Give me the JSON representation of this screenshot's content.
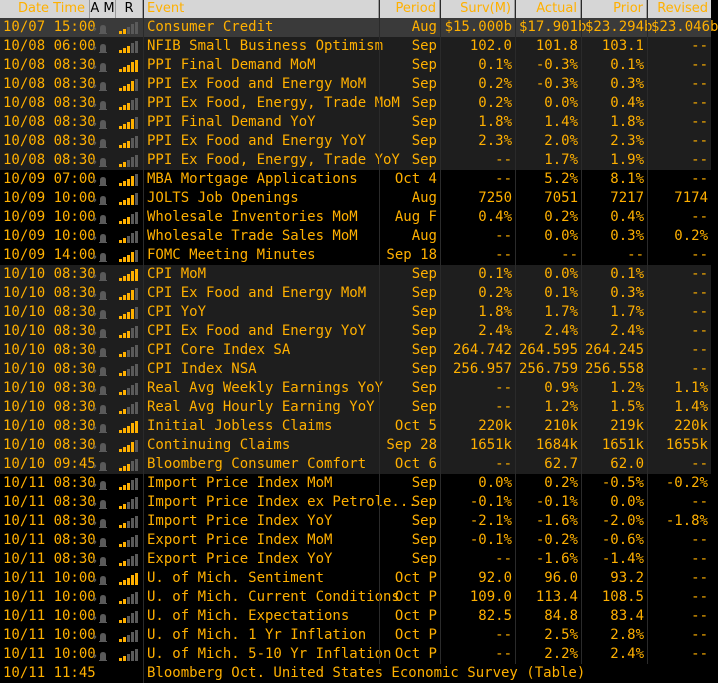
{
  "headers": {
    "time": "Date Time",
    "am": "A M",
    "r": "R",
    "event": "Event",
    "period": "Period",
    "surv": "Surv(M)",
    "actual": "Actual",
    "prior": "Prior",
    "revised": "Revised"
  },
  "rows": [
    {
      "time": "10/07 15:00",
      "relevance": 2,
      "event": "Consumer Credit",
      "period": "Aug",
      "surv": "$15.000b",
      "actual": "$17.901b",
      "prior": "$23.294b",
      "revised": "$23.046b",
      "selected": true,
      "shade": false
    },
    {
      "time": "10/08 06:00",
      "relevance": 3,
      "event": "NFIB Small Business Optimism",
      "period": "Sep",
      "surv": "102.0",
      "actual": "101.8",
      "prior": "103.1",
      "revised": "--",
      "selected": false,
      "shade": true
    },
    {
      "time": "10/08 08:30",
      "relevance": 5,
      "event": "PPI Final Demand MoM",
      "period": "Sep",
      "surv": "0.1%",
      "actual": "-0.3%",
      "prior": "0.1%",
      "revised": "--",
      "selected": false,
      "shade": true
    },
    {
      "time": "10/08 08:30",
      "relevance": 4,
      "event": "PPI Ex Food and Energy MoM",
      "period": "Sep",
      "surv": "0.2%",
      "actual": "-0.3%",
      "prior": "0.3%",
      "revised": "--",
      "selected": false,
      "shade": true
    },
    {
      "time": "10/08 08:30",
      "relevance": 3,
      "event": "PPI Ex Food, Energy, Trade MoM",
      "period": "Sep",
      "surv": "0.2%",
      "actual": "0.0%",
      "prior": "0.4%",
      "revised": "--",
      "selected": false,
      "shade": true
    },
    {
      "time": "10/08 08:30",
      "relevance": 4,
      "event": "PPI Final Demand YoY",
      "period": "Sep",
      "surv": "1.8%",
      "actual": "1.4%",
      "prior": "1.8%",
      "revised": "--",
      "selected": false,
      "shade": true
    },
    {
      "time": "10/08 08:30",
      "relevance": 3,
      "event": "PPI Ex Food and Energy YoY",
      "period": "Sep",
      "surv": "2.3%",
      "actual": "2.0%",
      "prior": "2.3%",
      "revised": "--",
      "selected": false,
      "shade": true
    },
    {
      "time": "10/08 08:30",
      "relevance": 2,
      "event": "PPI Ex Food, Energy, Trade YoY",
      "period": "Sep",
      "surv": "--",
      "actual": "1.7%",
      "prior": "1.9%",
      "revised": "--",
      "selected": false,
      "shade": true
    },
    {
      "time": "10/09 07:00",
      "relevance": 4,
      "event": "MBA Mortgage Applications",
      "period": "Oct 4",
      "surv": "--",
      "actual": "5.2%",
      "prior": "8.1%",
      "revised": "--",
      "selected": false,
      "shade": false
    },
    {
      "time": "10/09 10:00",
      "relevance": 4,
      "event": "JOLTS Job Openings",
      "period": "Aug",
      "surv": "7250",
      "actual": "7051",
      "prior": "7217",
      "revised": "7174",
      "selected": false,
      "shade": false
    },
    {
      "time": "10/09 10:00",
      "relevance": 3,
      "event": "Wholesale Inventories MoM",
      "period": "Aug F",
      "surv": "0.4%",
      "actual": "0.2%",
      "prior": "0.4%",
      "revised": "--",
      "selected": false,
      "shade": false
    },
    {
      "time": "10/09 10:00",
      "relevance": 2,
      "event": "Wholesale Trade Sales MoM",
      "period": "Aug",
      "surv": "--",
      "actual": "0.0%",
      "prior": "0.3%",
      "revised": "0.2%",
      "selected": false,
      "shade": false
    },
    {
      "time": "10/09 14:00",
      "relevance": 4,
      "event": "FOMC Meeting Minutes",
      "period": "Sep 18",
      "surv": "--",
      "actual": "--",
      "prior": "--",
      "revised": "--",
      "selected": false,
      "shade": false
    },
    {
      "time": "10/10 08:30",
      "relevance": 5,
      "event": "CPI MoM",
      "period": "Sep",
      "surv": "0.1%",
      "actual": "0.0%",
      "prior": "0.1%",
      "revised": "--",
      "selected": false,
      "shade": true
    },
    {
      "time": "10/10 08:30",
      "relevance": 4,
      "event": "CPI Ex Food and Energy MoM",
      "period": "Sep",
      "surv": "0.2%",
      "actual": "0.1%",
      "prior": "0.3%",
      "revised": "--",
      "selected": false,
      "shade": true
    },
    {
      "time": "10/10 08:30",
      "relevance": 4,
      "event": "CPI YoY",
      "period": "Sep",
      "surv": "1.8%",
      "actual": "1.7%",
      "prior": "1.7%",
      "revised": "--",
      "selected": false,
      "shade": true
    },
    {
      "time": "10/10 08:30",
      "relevance": 3,
      "event": "CPI Ex Food and Energy YoY",
      "period": "Sep",
      "surv": "2.4%",
      "actual": "2.4%",
      "prior": "2.4%",
      "revised": "--",
      "selected": false,
      "shade": true
    },
    {
      "time": "10/10 08:30",
      "relevance": 2,
      "event": "CPI Core Index SA",
      "period": "Sep",
      "surv": "264.742",
      "actual": "264.595",
      "prior": "264.245",
      "revised": "--",
      "selected": false,
      "shade": true
    },
    {
      "time": "10/10 08:30",
      "relevance": 2,
      "event": "CPI Index NSA",
      "period": "Sep",
      "surv": "256.957",
      "actual": "256.759",
      "prior": "256.558",
      "revised": "--",
      "selected": false,
      "shade": true
    },
    {
      "time": "10/10 08:30",
      "relevance": 2,
      "event": "Real Avg Weekly Earnings YoY",
      "period": "Sep",
      "surv": "--",
      "actual": "0.9%",
      "prior": "1.2%",
      "revised": "1.1%",
      "selected": false,
      "shade": true
    },
    {
      "time": "10/10 08:30",
      "relevance": 2,
      "event": "Real Avg Hourly Earning YoY",
      "period": "Sep",
      "surv": "--",
      "actual": "1.2%",
      "prior": "1.5%",
      "revised": "1.4%",
      "selected": false,
      "shade": true
    },
    {
      "time": "10/10 08:30",
      "relevance": 5,
      "event": "Initial Jobless Claims",
      "period": "Oct 5",
      "surv": "220k",
      "actual": "210k",
      "prior": "219k",
      "revised": "220k",
      "selected": false,
      "shade": true
    },
    {
      "time": "10/10 08:30",
      "relevance": 4,
      "event": "Continuing Claims",
      "period": "Sep 28",
      "surv": "1651k",
      "actual": "1684k",
      "prior": "1651k",
      "revised": "1655k",
      "selected": false,
      "shade": true
    },
    {
      "time": "10/10 09:45",
      "relevance": 3,
      "event": "Bloomberg Consumer Comfort",
      "period": "Oct 6",
      "surv": "--",
      "actual": "62.7",
      "prior": "62.0",
      "revised": "--",
      "selected": false,
      "shade": true
    },
    {
      "time": "10/11 08:30",
      "relevance": 3,
      "event": "Import Price Index MoM",
      "period": "Sep",
      "surv": "0.0%",
      "actual": "0.2%",
      "prior": "-0.5%",
      "revised": "-0.2%",
      "selected": false,
      "shade": false
    },
    {
      "time": "10/11 08:30",
      "relevance": 2,
      "event": "Import Price Index ex Petrole...",
      "period": "Sep",
      "surv": "-0.1%",
      "actual": "-0.1%",
      "prior": "0.0%",
      "revised": "--",
      "selected": false,
      "shade": false
    },
    {
      "time": "10/11 08:30",
      "relevance": 2,
      "event": "Import Price Index YoY",
      "period": "Sep",
      "surv": "-2.1%",
      "actual": "-1.6%",
      "prior": "-2.0%",
      "revised": "-1.8%",
      "selected": false,
      "shade": false
    },
    {
      "time": "10/11 08:30",
      "relevance": 2,
      "event": "Export Price Index MoM",
      "period": "Sep",
      "surv": "-0.1%",
      "actual": "-0.2%",
      "prior": "-0.6%",
      "revised": "--",
      "selected": false,
      "shade": false
    },
    {
      "time": "10/11 08:30",
      "relevance": 2,
      "event": "Export Price Index YoY",
      "period": "Sep",
      "surv": "--",
      "actual": "-1.6%",
      "prior": "-1.4%",
      "revised": "--",
      "selected": false,
      "shade": false
    },
    {
      "time": "10/11 10:00",
      "relevance": 5,
      "event": "U. of Mich. Sentiment",
      "period": "Oct P",
      "surv": "92.0",
      "actual": "96.0",
      "prior": "93.2",
      "revised": "--",
      "selected": false,
      "shade": false
    },
    {
      "time": "10/11 10:00",
      "relevance": 2,
      "event": "U. of Mich. Current Conditions",
      "period": "Oct P",
      "surv": "109.0",
      "actual": "113.4",
      "prior": "108.5",
      "revised": "--",
      "selected": false,
      "shade": false
    },
    {
      "time": "10/11 10:00",
      "relevance": 2,
      "event": "U. of Mich. Expectations",
      "period": "Oct P",
      "surv": "82.5",
      "actual": "84.8",
      "prior": "83.4",
      "revised": "--",
      "selected": false,
      "shade": false
    },
    {
      "time": "10/11 10:00",
      "relevance": 2,
      "event": "U. of Mich. 1 Yr Inflation",
      "period": "Oct P",
      "surv": "--",
      "actual": "2.5%",
      "prior": "2.8%",
      "revised": "--",
      "selected": false,
      "shade": false
    },
    {
      "time": "10/11 10:00",
      "relevance": 2,
      "event": "U. of Mich. 5-10 Yr Inflation",
      "period": "Oct P",
      "surv": "--",
      "actual": "2.2%",
      "prior": "2.4%",
      "revised": "--",
      "selected": false,
      "shade": false
    },
    {
      "time": "10/11 11:45",
      "relevance": 0,
      "event": "Bloomberg Oct. United States Economic Survey (Table)",
      "period": "",
      "surv": "",
      "actual": "",
      "prior": "",
      "revised": "",
      "selected": false,
      "shade": false,
      "footer": true
    }
  ],
  "colors": {
    "text": "#ffb000",
    "header_bg": "#d6d6d6",
    "selected_bg": "#3a3a3a",
    "shade_bg": "#1e1e1e",
    "bar_dim": "#5a5a5a"
  }
}
